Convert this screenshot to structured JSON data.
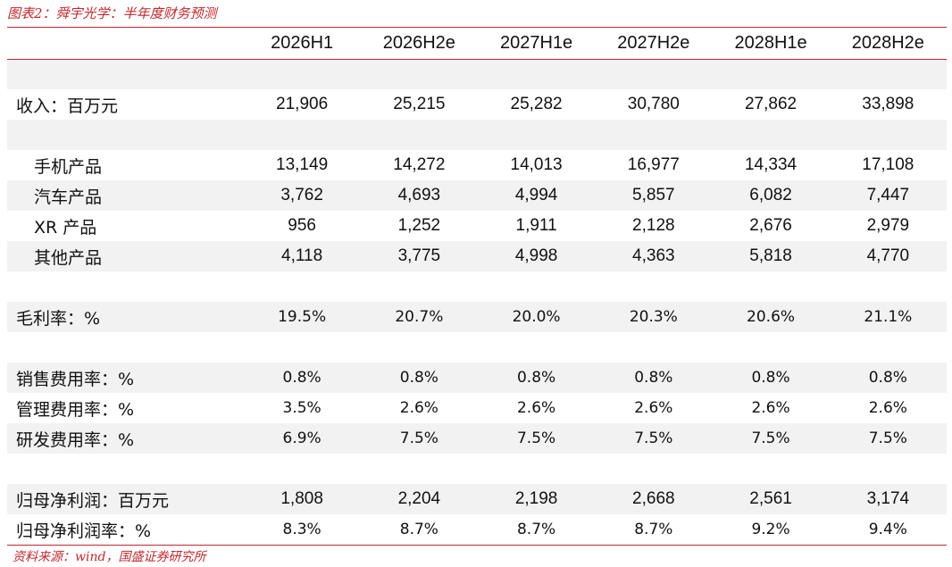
{
  "title": "图表2：舜宇光学：半年度财务预测",
  "source": "资料来源：wind，国盛证券研究所",
  "columns": [
    "2026H1",
    "2026H2e",
    "2027H1e",
    "2027H2e",
    "2028H1e",
    "2028H2e"
  ],
  "rows": {
    "revenue": {
      "label": "收入：百万元",
      "values": [
        "21,906",
        "25,215",
        "25,282",
        "30,780",
        "27,862",
        "33,898"
      ]
    },
    "phone": {
      "label": "手机产品",
      "values": [
        "13,149",
        "14,272",
        "14,013",
        "16,977",
        "14,334",
        "17,108"
      ]
    },
    "auto": {
      "label": "汽车产品",
      "values": [
        "3,762",
        "4,693",
        "4,994",
        "5,857",
        "6,082",
        "7,447"
      ]
    },
    "xr": {
      "label": "XR 产品",
      "values": [
        "956",
        "1,252",
        "1,911",
        "2,128",
        "2,676",
        "2,979"
      ]
    },
    "other": {
      "label": "其他产品",
      "values": [
        "4,118",
        "3,775",
        "4,998",
        "4,363",
        "5,818",
        "4,770"
      ]
    },
    "gm": {
      "label": "毛利率：%",
      "values": [
        "19.5%",
        "20.7%",
        "20.0%",
        "20.3%",
        "20.6%",
        "21.1%"
      ]
    },
    "sell": {
      "label": "销售费用率：%",
      "values": [
        "0.8%",
        "0.8%",
        "0.8%",
        "0.8%",
        "0.8%",
        "0.8%"
      ]
    },
    "admin": {
      "label": "管理费用率：%",
      "values": [
        "3.5%",
        "2.6%",
        "2.6%",
        "2.6%",
        "2.6%",
        "2.6%"
      ]
    },
    "rnd": {
      "label": "研发费用率：%",
      "values": [
        "6.9%",
        "7.5%",
        "7.5%",
        "7.5%",
        "7.5%",
        "7.5%"
      ]
    },
    "np": {
      "label": "归母净利润：百万元",
      "values": [
        "1,808",
        "2,204",
        "2,198",
        "2,668",
        "2,561",
        "3,174"
      ]
    },
    "npm": {
      "label": "归母净利润率：%",
      "values": [
        "8.3%",
        "8.7%",
        "8.7%",
        "8.7%",
        "9.2%",
        "9.4%"
      ]
    }
  },
  "colors": {
    "accent": "#c0282d",
    "shade": "#f2f2f2"
  }
}
